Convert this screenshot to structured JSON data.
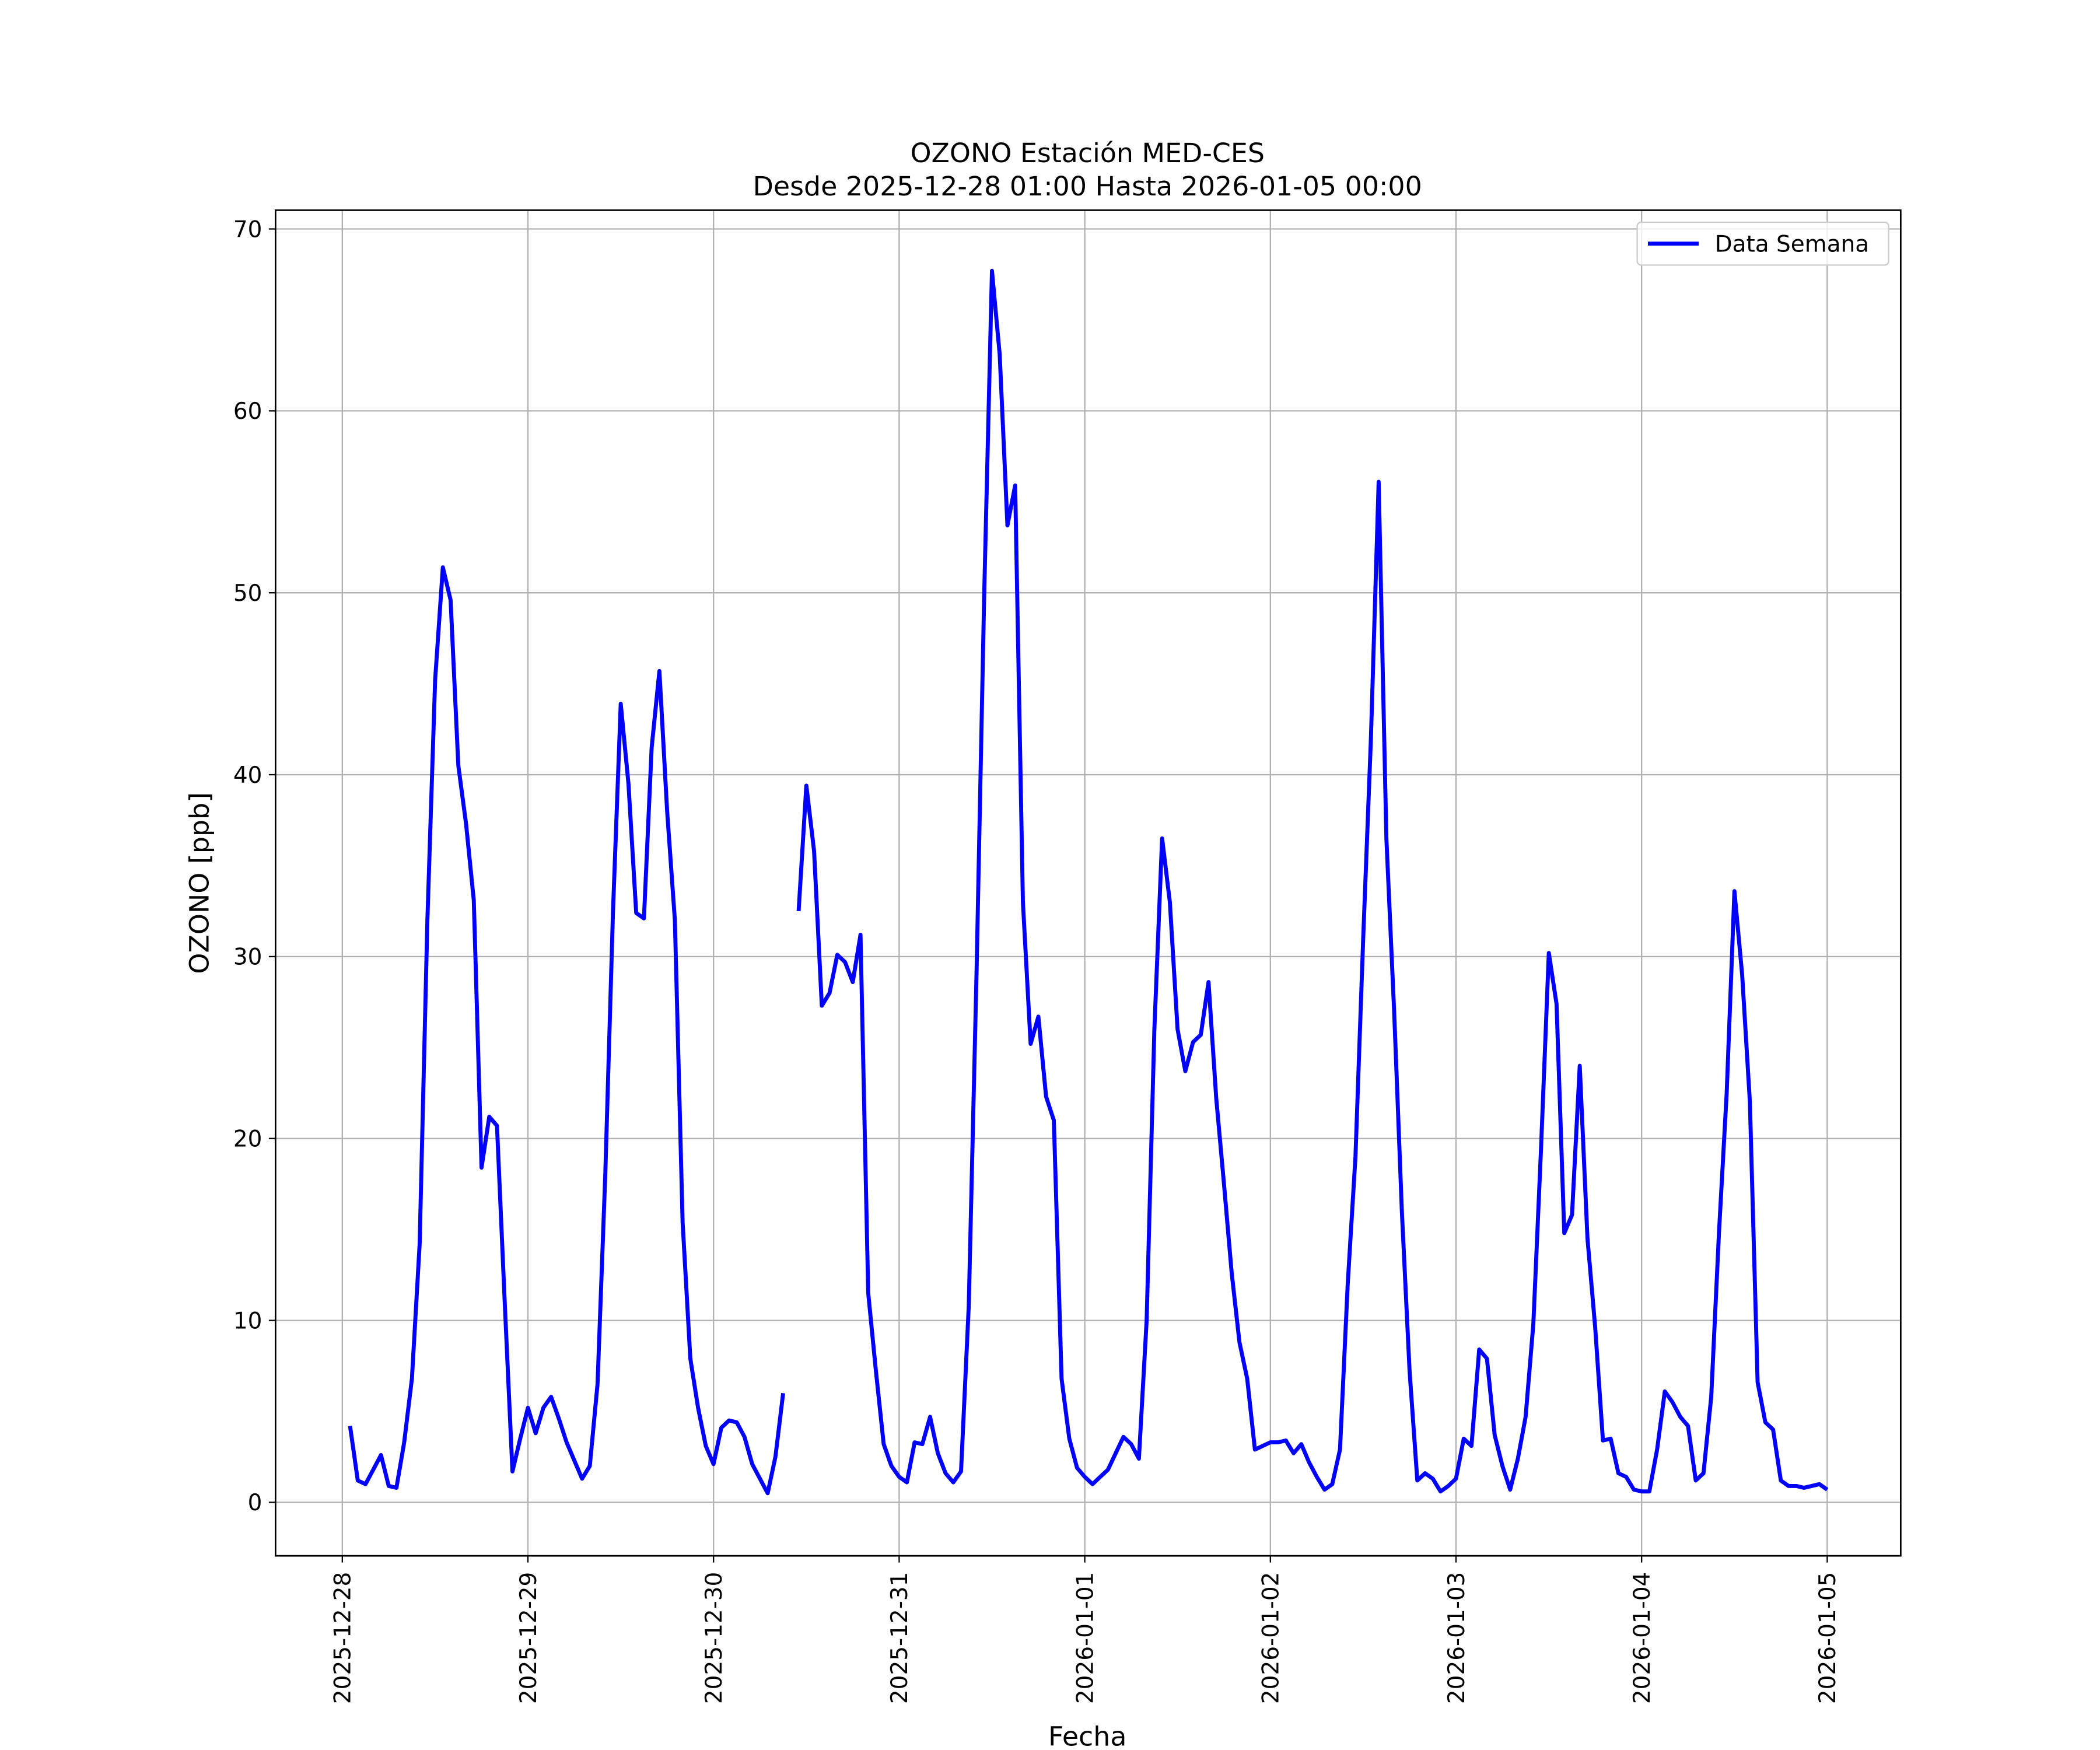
{
  "chart_data": {
    "type": "line",
    "title": "OZONO Estación MED-CES",
    "subtitle": "Desde 2025-12-28 01:00 Hasta 2026-01-05 00:00",
    "xlabel": "Fecha",
    "ylabel": "OZONO [ppb]",
    "x": [
      "2025-12-28 01:00",
      "2025-12-28 02:00",
      "2025-12-28 03:00",
      "2025-12-28 04:00",
      "2025-12-28 05:00",
      "2025-12-28 06:00",
      "2025-12-28 07:00",
      "2025-12-28 08:00",
      "2025-12-28 09:00",
      "2025-12-28 10:00",
      "2025-12-28 11:00",
      "2025-12-28 12:00",
      "2025-12-28 13:00",
      "2025-12-28 14:00",
      "2025-12-28 15:00",
      "2025-12-28 16:00",
      "2025-12-28 17:00",
      "2025-12-28 18:00",
      "2025-12-28 19:00",
      "2025-12-28 20:00",
      "2025-12-28 21:00",
      "2025-12-28 22:00",
      "2025-12-28 23:00",
      "2025-12-29 00:00",
      "2025-12-29 01:00",
      "2025-12-29 02:00",
      "2025-12-29 03:00",
      "2025-12-29 04:00",
      "2025-12-29 05:00",
      "2025-12-29 06:00",
      "2025-12-29 07:00",
      "2025-12-29 08:00",
      "2025-12-29 09:00",
      "2025-12-29 10:00",
      "2025-12-29 11:00",
      "2025-12-29 12:00",
      "2025-12-29 13:00",
      "2025-12-29 14:00",
      "2025-12-29 15:00",
      "2025-12-29 16:00",
      "2025-12-29 17:00",
      "2025-12-29 18:00",
      "2025-12-29 19:00",
      "2025-12-29 20:00",
      "2025-12-29 21:00",
      "2025-12-29 22:00",
      "2025-12-29 23:00",
      "2025-12-30 00:00",
      "2025-12-30 01:00",
      "2025-12-30 02:00",
      "2025-12-30 03:00",
      "2025-12-30 04:00",
      "2025-12-30 05:00",
      "2025-12-30 06:00",
      "2025-12-30 07:00",
      "2025-12-30 08:00",
      "2025-12-30 09:00",
      "2025-12-30 10:00",
      "2025-12-30 11:00",
      "2025-12-30 12:00",
      "2025-12-30 13:00",
      "2025-12-30 14:00",
      "2025-12-30 15:00",
      "2025-12-30 16:00",
      "2025-12-30 17:00",
      "2025-12-30 18:00",
      "2025-12-30 19:00",
      "2025-12-30 20:00",
      "2025-12-30 21:00",
      "2025-12-30 22:00",
      "2025-12-30 23:00",
      "2025-12-31 00:00",
      "2025-12-31 01:00",
      "2025-12-31 02:00",
      "2025-12-31 03:00",
      "2025-12-31 04:00",
      "2025-12-31 05:00",
      "2025-12-31 06:00",
      "2025-12-31 07:00",
      "2025-12-31 08:00",
      "2025-12-31 09:00",
      "2025-12-31 10:00",
      "2025-12-31 11:00",
      "2025-12-31 12:00",
      "2025-12-31 13:00",
      "2025-12-31 14:00",
      "2025-12-31 15:00",
      "2025-12-31 16:00",
      "2025-12-31 17:00",
      "2025-12-31 18:00",
      "2025-12-31 19:00",
      "2025-12-31 20:00",
      "2025-12-31 21:00",
      "2025-12-31 22:00",
      "2025-12-31 23:00",
      "2026-01-01 00:00",
      "2026-01-01 01:00",
      "2026-01-01 02:00",
      "2026-01-01 03:00",
      "2026-01-01 04:00",
      "2026-01-01 05:00",
      "2026-01-01 06:00",
      "2026-01-01 07:00",
      "2026-01-01 08:00",
      "2026-01-01 09:00",
      "2026-01-01 10:00",
      "2026-01-01 11:00",
      "2026-01-01 12:00",
      "2026-01-01 13:00",
      "2026-01-01 14:00",
      "2026-01-01 15:00",
      "2026-01-01 16:00",
      "2026-01-01 17:00",
      "2026-01-01 18:00",
      "2026-01-01 19:00",
      "2026-01-01 20:00",
      "2026-01-01 21:00",
      "2026-01-01 22:00",
      "2026-01-01 23:00",
      "2026-01-02 00:00",
      "2026-01-02 01:00",
      "2026-01-02 02:00",
      "2026-01-02 03:00",
      "2026-01-02 04:00",
      "2026-01-02 05:00",
      "2026-01-02 06:00",
      "2026-01-02 07:00",
      "2026-01-02 08:00",
      "2026-01-02 09:00",
      "2026-01-02 10:00",
      "2026-01-02 11:00",
      "2026-01-02 12:00",
      "2026-01-02 13:00",
      "2026-01-02 14:00",
      "2026-01-02 15:00",
      "2026-01-02 16:00",
      "2026-01-02 17:00",
      "2026-01-02 18:00",
      "2026-01-02 19:00",
      "2026-01-02 20:00",
      "2026-01-02 21:00",
      "2026-01-02 22:00",
      "2026-01-02 23:00",
      "2026-01-03 00:00",
      "2026-01-03 01:00",
      "2026-01-03 02:00",
      "2026-01-03 03:00",
      "2026-01-03 04:00",
      "2026-01-03 05:00",
      "2026-01-03 06:00",
      "2026-01-03 07:00",
      "2026-01-03 08:00",
      "2026-01-03 09:00",
      "2026-01-03 10:00",
      "2026-01-03 11:00",
      "2026-01-03 12:00",
      "2026-01-03 13:00",
      "2026-01-03 14:00",
      "2026-01-03 15:00",
      "2026-01-03 16:00",
      "2026-01-03 17:00",
      "2026-01-03 18:00",
      "2026-01-03 19:00",
      "2026-01-03 20:00",
      "2026-01-03 21:00",
      "2026-01-03 22:00",
      "2026-01-03 23:00",
      "2026-01-04 00:00",
      "2026-01-04 01:00",
      "2026-01-04 02:00",
      "2026-01-04 03:00",
      "2026-01-04 04:00",
      "2026-01-04 05:00",
      "2026-01-04 06:00",
      "2026-01-04 07:00",
      "2026-01-04 08:00",
      "2026-01-04 09:00",
      "2026-01-04 10:00",
      "2026-01-04 11:00",
      "2026-01-04 12:00",
      "2026-01-04 13:00",
      "2026-01-04 14:00",
      "2026-01-04 15:00",
      "2026-01-04 16:00",
      "2026-01-04 17:00",
      "2026-01-04 18:00",
      "2026-01-04 19:00",
      "2026-01-04 20:00",
      "2026-01-04 21:00",
      "2026-01-04 22:00",
      "2026-01-04 23:00",
      "2026-01-05 00:00"
    ],
    "series": [
      {
        "name": "Data Semana",
        "color": "#0000ff",
        "values": [
          4.2,
          1.2,
          1.0,
          1.8,
          2.6,
          0.9,
          0.8,
          3.3,
          6.8,
          14.2,
          32.0,
          45.2,
          51.4,
          49.6,
          40.5,
          37.3,
          33.1,
          18.4,
          21.2,
          20.7,
          11.0,
          1.7,
          3.5,
          5.2,
          3.8,
          5.2,
          5.8,
          4.6,
          3.3,
          2.3,
          1.3,
          2.0,
          6.5,
          18.0,
          32.5,
          43.9,
          39.5,
          32.4,
          32.1,
          41.5,
          45.7,
          38.0,
          32.0,
          15.4,
          7.9,
          5.2,
          3.1,
          2.1,
          4.1,
          4.5,
          4.4,
          3.6,
          2.1,
          1.3,
          0.5,
          2.5,
          6.0,
          null,
          32.5,
          39.4,
          35.8,
          27.3,
          28.0,
          30.1,
          29.7,
          28.6,
          31.2,
          11.5,
          7.2,
          3.2,
          2.0,
          1.4,
          1.1,
          3.3,
          3.2,
          4.7,
          2.7,
          1.6,
          1.1,
          1.7,
          10.8,
          29.0,
          50.0,
          67.7,
          63.1,
          53.7,
          55.9,
          33.0,
          25.2,
          26.7,
          22.3,
          21.0,
          6.8,
          3.5,
          1.9,
          1.4,
          1.0,
          1.4,
          1.8,
          2.7,
          3.6,
          3.2,
          2.4,
          10.0,
          26.0,
          36.5,
          33.0,
          26.0,
          23.7,
          25.3,
          25.7,
          28.6,
          22.2,
          17.5,
          12.6,
          8.8,
          6.8,
          2.9,
          3.1,
          3.3,
          3.3,
          3.4,
          2.7,
          3.2,
          2.2,
          1.4,
          0.7,
          1.0,
          2.9,
          12.0,
          19.0,
          31.0,
          42.0,
          56.1,
          36.5,
          27.0,
          16.0,
          7.2,
          1.2,
          1.6,
          1.3,
          0.6,
          0.9,
          1.3,
          3.5,
          3.1,
          8.4,
          7.9,
          3.7,
          2.0,
          0.7,
          2.4,
          4.7,
          9.8,
          19.5,
          30.2,
          27.4,
          14.8,
          15.8,
          24.0,
          14.5,
          9.6,
          3.4,
          3.5,
          1.6,
          1.4,
          0.7,
          0.6,
          0.6,
          2.9,
          6.1,
          5.5,
          4.7,
          4.2,
          1.2,
          1.6,
          5.8,
          14.8,
          22.5,
          33.6,
          29.0,
          22.0,
          6.6,
          4.4,
          4.0,
          1.2,
          0.9,
          0.9,
          0.8,
          0.9,
          1.0,
          0.7
        ]
      }
    ],
    "xlim": [
      "2025-12-27 15:22",
      "2026-01-05 09:30"
    ],
    "xticks": [
      "2025-12-28",
      "2025-12-29",
      "2025-12-30",
      "2025-12-31",
      "2026-01-01",
      "2026-01-02",
      "2026-01-03",
      "2026-01-04",
      "2026-01-05"
    ],
    "ylim": [
      -2.94,
      71.03
    ],
    "yticks": [
      0,
      10,
      20,
      30,
      40,
      50,
      60,
      70
    ],
    "grid": true,
    "legend": "upper right"
  }
}
